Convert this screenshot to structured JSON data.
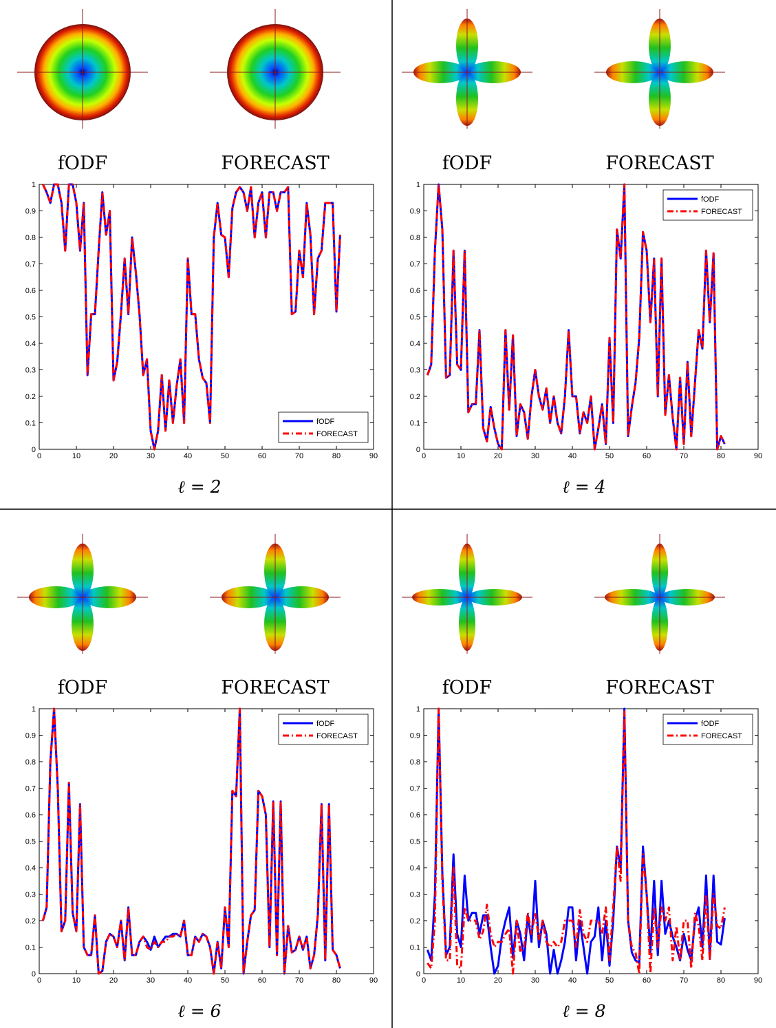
{
  "chart_data": [
    {
      "type": "line",
      "glyph_labels": [
        "fODF",
        "FORECAST"
      ],
      "caption": "ℓ = 2",
      "legend": "lower right",
      "xlim": [
        0,
        90
      ],
      "ylim": [
        0,
        1
      ],
      "xticks": [
        0,
        10,
        20,
        30,
        40,
        50,
        60,
        70,
        80,
        90
      ],
      "yticks": [
        0,
        0.1,
        0.2,
        0.3,
        0.4,
        0.5,
        0.6,
        0.7,
        0.8,
        0.9,
        1
      ],
      "x": [
        1,
        2,
        3,
        4,
        5,
        6,
        7,
        8,
        9,
        10,
        11,
        12,
        13,
        14,
        15,
        16,
        17,
        18,
        19,
        20,
        21,
        22,
        23,
        24,
        25,
        26,
        27,
        28,
        29,
        30,
        31,
        32,
        33,
        34,
        35,
        36,
        37,
        38,
        39,
        40,
        41,
        42,
        43,
        44,
        45,
        46,
        47,
        48,
        49,
        50,
        51,
        52,
        53,
        54,
        55,
        56,
        57,
        58,
        59,
        60,
        61,
        62,
        63,
        64,
        65,
        66,
        67,
        68,
        69,
        70,
        71,
        72,
        73,
        74,
        75,
        76,
        77,
        78,
        79,
        80,
        81
      ],
      "series": [
        {
          "name": "fODF",
          "color": "#0000ff",
          "linestyle": "solid",
          "values": [
            1.0,
            0.97,
            0.93,
            1.0,
            1.0,
            0.93,
            0.75,
            1.0,
            1.0,
            0.93,
            0.75,
            0.93,
            0.28,
            0.51,
            0.51,
            0.75,
            0.97,
            0.81,
            0.9,
            0.26,
            0.33,
            0.51,
            0.72,
            0.51,
            0.8,
            0.67,
            0.51,
            0.28,
            0.34,
            0.07,
            0.0,
            0.07,
            0.28,
            0.07,
            0.26,
            0.1,
            0.24,
            0.34,
            0.1,
            0.72,
            0.51,
            0.51,
            0.34,
            0.27,
            0.25,
            0.1,
            0.8,
            0.93,
            0.81,
            0.8,
            0.65,
            0.91,
            0.97,
            0.99,
            0.97,
            0.9,
            0.99,
            0.8,
            0.93,
            0.97,
            0.8,
            0.97,
            0.97,
            0.9,
            0.97,
            0.97,
            0.99,
            0.51,
            0.52,
            0.75,
            0.65,
            0.93,
            0.81,
            0.51,
            0.72,
            0.75,
            0.93,
            0.93,
            0.93,
            0.52,
            0.81
          ]
        },
        {
          "name": "FORECAST",
          "color": "#ff0000",
          "linestyle": "dashdot",
          "values": [
            1.0,
            0.97,
            0.93,
            1.0,
            1.0,
            0.93,
            0.75,
            1.0,
            1.0,
            0.93,
            0.75,
            0.93,
            0.28,
            0.51,
            0.51,
            0.75,
            0.97,
            0.81,
            0.9,
            0.26,
            0.33,
            0.51,
            0.72,
            0.51,
            0.8,
            0.67,
            0.51,
            0.28,
            0.34,
            0.07,
            0.0,
            0.07,
            0.28,
            0.07,
            0.26,
            0.1,
            0.24,
            0.34,
            0.1,
            0.72,
            0.51,
            0.51,
            0.34,
            0.27,
            0.25,
            0.1,
            0.8,
            0.93,
            0.81,
            0.8,
            0.65,
            0.91,
            0.97,
            0.99,
            0.97,
            0.9,
            0.99,
            0.8,
            0.93,
            0.97,
            0.8,
            0.97,
            0.97,
            0.9,
            0.97,
            0.97,
            0.99,
            0.51,
            0.52,
            0.75,
            0.65,
            0.93,
            0.81,
            0.51,
            0.72,
            0.75,
            0.93,
            0.93,
            0.93,
            0.52,
            0.81
          ]
        }
      ]
    },
    {
      "type": "line",
      "glyph_labels": [
        "fODF",
        "FORECAST"
      ],
      "caption": "ℓ = 4",
      "legend": "upper right",
      "xlim": [
        0,
        90
      ],
      "ylim": [
        0,
        1
      ],
      "xticks": [
        0,
        10,
        20,
        30,
        40,
        50,
        60,
        70,
        80,
        90
      ],
      "yticks": [
        0,
        0.1,
        0.2,
        0.3,
        0.4,
        0.5,
        0.6,
        0.7,
        0.8,
        0.9,
        1
      ],
      "x": [
        1,
        2,
        3,
        4,
        5,
        6,
        7,
        8,
        9,
        10,
        11,
        12,
        13,
        14,
        15,
        16,
        17,
        18,
        19,
        20,
        21,
        22,
        23,
        24,
        25,
        26,
        27,
        28,
        29,
        30,
        31,
        32,
        33,
        34,
        35,
        36,
        37,
        38,
        39,
        40,
        41,
        42,
        43,
        44,
        45,
        46,
        47,
        48,
        49,
        50,
        51,
        52,
        53,
        54,
        55,
        56,
        57,
        58,
        59,
        60,
        61,
        62,
        63,
        64,
        65,
        66,
        67,
        68,
        69,
        70,
        71,
        72,
        73,
        74,
        75,
        76,
        77,
        78,
        79,
        80,
        81
      ],
      "series": [
        {
          "name": "fODF",
          "color": "#0000ff",
          "linestyle": "solid",
          "values": [
            0.28,
            0.32,
            0.75,
            1.0,
            0.83,
            0.27,
            0.28,
            0.75,
            0.32,
            0.3,
            0.75,
            0.14,
            0.17,
            0.17,
            0.45,
            0.08,
            0.03,
            0.16,
            0.08,
            0.02,
            0.0,
            0.45,
            0.15,
            0.43,
            0.05,
            0.17,
            0.14,
            0.04,
            0.2,
            0.3,
            0.2,
            0.15,
            0.23,
            0.1,
            0.2,
            0.1,
            0.06,
            0.2,
            0.45,
            0.2,
            0.2,
            0.06,
            0.14,
            0.1,
            0.2,
            0.0,
            0.08,
            0.17,
            0.02,
            0.42,
            0.1,
            0.83,
            0.72,
            1.0,
            0.05,
            0.16,
            0.25,
            0.42,
            0.82,
            0.75,
            0.48,
            0.72,
            0.2,
            0.72,
            0.13,
            0.28,
            0.12,
            0.0,
            0.27,
            0.02,
            0.33,
            0.05,
            0.25,
            0.45,
            0.38,
            0.75,
            0.48,
            0.74,
            0.0,
            0.05,
            0.02
          ]
        },
        {
          "name": "FORECAST",
          "color": "#ff0000",
          "linestyle": "dashdot",
          "values": [
            0.28,
            0.32,
            0.75,
            1.0,
            0.83,
            0.27,
            0.28,
            0.75,
            0.32,
            0.3,
            0.75,
            0.14,
            0.17,
            0.17,
            0.45,
            0.08,
            0.03,
            0.16,
            0.08,
            0.02,
            0.0,
            0.45,
            0.15,
            0.43,
            0.05,
            0.17,
            0.14,
            0.04,
            0.2,
            0.3,
            0.2,
            0.15,
            0.23,
            0.1,
            0.2,
            0.1,
            0.06,
            0.2,
            0.45,
            0.2,
            0.2,
            0.06,
            0.14,
            0.1,
            0.2,
            0.0,
            0.08,
            0.17,
            0.02,
            0.42,
            0.1,
            0.83,
            0.72,
            1.0,
            0.05,
            0.16,
            0.25,
            0.42,
            0.82,
            0.75,
            0.48,
            0.72,
            0.2,
            0.72,
            0.13,
            0.28,
            0.12,
            0.0,
            0.27,
            0.02,
            0.33,
            0.05,
            0.25,
            0.45,
            0.38,
            0.75,
            0.48,
            0.74,
            0.0,
            0.05,
            0.02
          ]
        }
      ]
    },
    {
      "type": "line",
      "glyph_labels": [
        "fODF",
        "FORECAST"
      ],
      "caption": "ℓ = 6",
      "legend": "upper right",
      "xlim": [
        0,
        90
      ],
      "ylim": [
        0,
        1
      ],
      "xticks": [
        0,
        10,
        20,
        30,
        40,
        50,
        60,
        70,
        80,
        90
      ],
      "yticks": [
        0,
        0.1,
        0.2,
        0.3,
        0.4,
        0.5,
        0.6,
        0.7,
        0.8,
        0.9,
        1
      ],
      "x": [
        1,
        2,
        3,
        4,
        5,
        6,
        7,
        8,
        9,
        10,
        11,
        12,
        13,
        14,
        15,
        16,
        17,
        18,
        19,
        20,
        21,
        22,
        23,
        24,
        25,
        26,
        27,
        28,
        29,
        30,
        31,
        32,
        33,
        34,
        35,
        36,
        37,
        38,
        39,
        40,
        41,
        42,
        43,
        44,
        45,
        46,
        47,
        48,
        49,
        50,
        51,
        52,
        53,
        54,
        55,
        56,
        57,
        58,
        59,
        60,
        61,
        62,
        63,
        64,
        65,
        66,
        67,
        68,
        69,
        70,
        71,
        72,
        73,
        74,
        75,
        76,
        77,
        78,
        79,
        80,
        81
      ],
      "series": [
        {
          "name": "fODF",
          "color": "#0000ff",
          "linestyle": "solid",
          "values": [
            0.2,
            0.25,
            0.8,
            1.0,
            0.7,
            0.16,
            0.2,
            0.72,
            0.23,
            0.16,
            0.64,
            0.1,
            0.07,
            0.07,
            0.22,
            0.0,
            0.01,
            0.12,
            0.15,
            0.14,
            0.1,
            0.2,
            0.05,
            0.25,
            0.07,
            0.07,
            0.12,
            0.14,
            0.12,
            0.09,
            0.14,
            0.1,
            0.12,
            0.14,
            0.14,
            0.15,
            0.15,
            0.14,
            0.2,
            0.07,
            0.07,
            0.14,
            0.12,
            0.15,
            0.14,
            0.1,
            0.0,
            0.12,
            0.02,
            0.25,
            0.1,
            0.69,
            0.67,
            1.0,
            0.0,
            0.12,
            0.22,
            0.24,
            0.69,
            0.67,
            0.6,
            0.1,
            0.65,
            0.07,
            0.65,
            0.0,
            0.18,
            0.08,
            0.09,
            0.14,
            0.09,
            0.14,
            0.02,
            0.07,
            0.22,
            0.64,
            0.05,
            0.64,
            0.09,
            0.07,
            0.02
          ]
        },
        {
          "name": "FORECAST",
          "color": "#ff0000",
          "linestyle": "dashdot",
          "values": [
            0.2,
            0.25,
            0.8,
            1.0,
            0.7,
            0.16,
            0.2,
            0.72,
            0.23,
            0.16,
            0.64,
            0.1,
            0.07,
            0.07,
            0.22,
            0.0,
            0.01,
            0.12,
            0.15,
            0.14,
            0.1,
            0.2,
            0.05,
            0.25,
            0.07,
            0.07,
            0.12,
            0.14,
            0.1,
            0.09,
            0.12,
            0.1,
            0.12,
            0.12,
            0.14,
            0.14,
            0.15,
            0.14,
            0.2,
            0.07,
            0.07,
            0.14,
            0.12,
            0.15,
            0.14,
            0.1,
            0.0,
            0.12,
            0.02,
            0.25,
            0.1,
            0.69,
            0.67,
            1.0,
            0.0,
            0.12,
            0.22,
            0.24,
            0.69,
            0.67,
            0.6,
            0.1,
            0.65,
            0.07,
            0.65,
            0.0,
            0.18,
            0.08,
            0.09,
            0.14,
            0.09,
            0.14,
            0.02,
            0.07,
            0.22,
            0.64,
            0.05,
            0.64,
            0.09,
            0.07,
            0.02
          ]
        }
      ]
    },
    {
      "type": "line",
      "glyph_labels": [
        "fODF",
        "FORECAST"
      ],
      "caption": "ℓ = 8",
      "legend": "upper right",
      "xlim": [
        0,
        90
      ],
      "ylim": [
        0,
        1
      ],
      "xticks": [
        0,
        10,
        20,
        30,
        40,
        50,
        60,
        70,
        80,
        90
      ],
      "yticks": [
        0,
        0.1,
        0.2,
        0.3,
        0.4,
        0.5,
        0.6,
        0.7,
        0.8,
        0.9,
        1
      ],
      "x": [
        1,
        2,
        3,
        4,
        5,
        6,
        7,
        8,
        9,
        10,
        11,
        12,
        13,
        14,
        15,
        16,
        17,
        18,
        19,
        20,
        21,
        22,
        23,
        24,
        25,
        26,
        27,
        28,
        29,
        30,
        31,
        32,
        33,
        34,
        35,
        36,
        37,
        38,
        39,
        40,
        41,
        42,
        43,
        44,
        45,
        46,
        47,
        48,
        49,
        50,
        51,
        52,
        53,
        54,
        55,
        56,
        57,
        58,
        59,
        60,
        61,
        62,
        63,
        64,
        65,
        66,
        67,
        68,
        69,
        70,
        71,
        72,
        73,
        74,
        75,
        76,
        77,
        78,
        79,
        80,
        81
      ],
      "series": [
        {
          "name": "fODF",
          "color": "#0000ff",
          "linestyle": "solid",
          "values": [
            0.09,
            0.05,
            0.3,
            1.0,
            0.38,
            0.07,
            0.1,
            0.45,
            0.15,
            0.1,
            0.37,
            0.2,
            0.23,
            0.23,
            0.15,
            0.22,
            0.22,
            0.1,
            0.0,
            0.03,
            0.14,
            0.2,
            0.25,
            0.06,
            0.2,
            0.15,
            0.05,
            0.22,
            0.12,
            0.35,
            0.1,
            0.2,
            0.15,
            0.0,
            0.09,
            0.0,
            0.05,
            0.12,
            0.25,
            0.25,
            0.05,
            0.2,
            0.1,
            0.0,
            0.12,
            0.14,
            0.25,
            0.05,
            0.2,
            0.03,
            0.2,
            0.48,
            0.4,
            1.0,
            0.2,
            0.08,
            0.05,
            0.04,
            0.48,
            0.3,
            0.08,
            0.35,
            0.07,
            0.35,
            0.15,
            0.2,
            0.14,
            0.1,
            0.05,
            0.15,
            0.09,
            0.05,
            0.2,
            0.25,
            0.1,
            0.37,
            0.06,
            0.37,
            0.12,
            0.11,
            0.21
          ]
        },
        {
          "name": "FORECAST",
          "color": "#ff0000",
          "linestyle": "dashdot",
          "values": [
            0.04,
            0.02,
            0.2,
            1.0,
            0.35,
            0.05,
            0.05,
            0.4,
            0.03,
            0.02,
            0.25,
            0.2,
            0.2,
            0.2,
            0.13,
            0.16,
            0.26,
            0.15,
            0.1,
            0.12,
            0.12,
            0.15,
            0.17,
            0.0,
            0.2,
            0.08,
            0.1,
            0.23,
            0.15,
            0.23,
            0.13,
            0.2,
            0.12,
            0.1,
            0.12,
            0.1,
            0.12,
            0.2,
            0.2,
            0.2,
            0.1,
            0.24,
            0.15,
            0.12,
            0.2,
            0.2,
            0.2,
            0.15,
            0.25,
            0.05,
            0.25,
            0.48,
            0.35,
            0.99,
            0.2,
            0.1,
            0.08,
            0.0,
            0.45,
            0.3,
            0.0,
            0.25,
            0.1,
            0.25,
            0.2,
            0.25,
            0.05,
            0.18,
            0.05,
            0.2,
            0.2,
            0.02,
            0.23,
            0.18,
            0.05,
            0.3,
            0.05,
            0.3,
            0.18,
            0.17,
            0.25
          ]
        }
      ]
    }
  ]
}
